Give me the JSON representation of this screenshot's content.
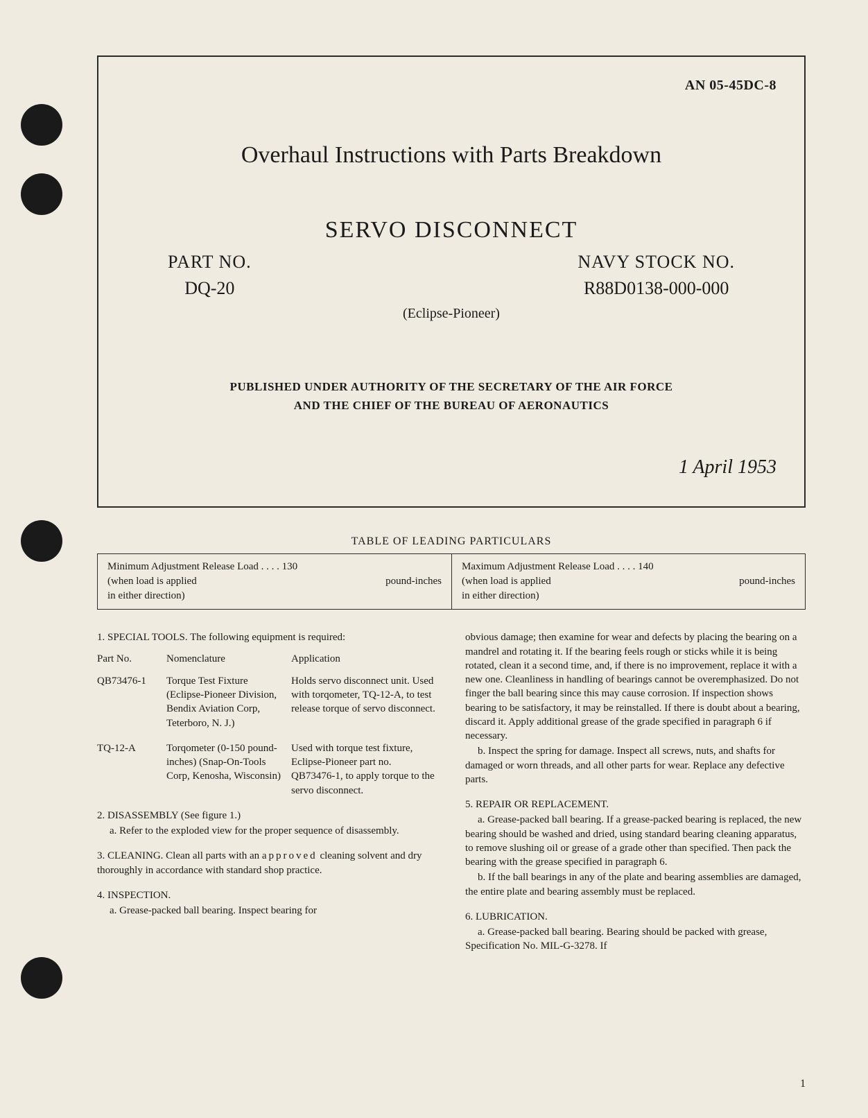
{
  "doc_number": "AN 05-45DC-8",
  "main_title": "Overhaul Instructions with Parts Breakdown",
  "servo_title": "SERVO DISCONNECT",
  "part_no_label": "PART NO.",
  "part_no_value": "DQ-20",
  "navy_label": "NAVY STOCK NO.",
  "navy_value": "R88D0138-000-000",
  "manufacturer": "(Eclipse-Pioneer)",
  "authority_line1": "PUBLISHED UNDER AUTHORITY OF THE SECRETARY OF THE AIR FORCE",
  "authority_line2": "AND THE CHIEF OF THE BUREAU OF AERONAUTICS",
  "date": "1 April 1953",
  "particulars_title": "TABLE OF LEADING PARTICULARS",
  "particulars": {
    "min_label": "Minimum Adjustment Release Load . . . . 130",
    "min_unit": "pound-inches",
    "min_note1": "(when load is applied",
    "min_note2": "in either direction)",
    "max_label": "Maximum Adjustment Release Load . . . . 140",
    "max_unit": "pound-inches",
    "max_note1": "(when load is applied",
    "max_note2": "in either direction)"
  },
  "sec1_title": "1. SPECIAL TOOLS.",
  "sec1_intro": "The following equipment is required:",
  "tools_headers": [
    "Part No.",
    "Nomenclature",
    "Application"
  ],
  "tools": [
    {
      "partno": "QB73476-1",
      "nomenclature": "Torque Test Fixture (Eclipse-Pioneer Division, Bendix Aviation Corp, Teterboro, N. J.)",
      "application": "Holds servo disconnect unit. Used with torqometer, TQ-12-A, to test release torque of servo disconnect."
    },
    {
      "partno": "TQ-12-A",
      "nomenclature": "Torqometer (0-150 pound-inches) (Snap-On-Tools Corp, Kenosha, Wisconsin)",
      "application": "Used with torque test fixture, Eclipse-Pioneer part no. QB73476-1, to apply torque to the servo disconnect."
    }
  ],
  "sec2_title": "2. DISASSEMBLY (See figure 1.)",
  "sec2_a": "a. Refer to the exploded view for the proper sequence of disassembly.",
  "sec3_title": "3. CLEANING.",
  "sec3_text": "Clean all parts with an",
  "sec3_approved": "approved",
  "sec3_text2": "cleaning solvent and dry thoroughly in accordance with standard shop practice.",
  "sec4_title": "4. INSPECTION.",
  "sec4_a_part1": "a. Grease-packed ball bearing. Inspect bearing for",
  "sec4_a_cont": "obvious damage; then examine for wear and defects by placing the bearing on a mandrel and rotating it. If the bearing feels rough or sticks while it is being rotated, clean it a second time, and, if there is no improvement, replace it with a new one. Cleanliness in handling of bearings cannot be overemphasized. Do not finger the ball bearing since this may cause corrosion. If inspection shows bearing to be satisfactory, it may be reinstalled. If there is doubt about a bearing, discard it. Apply additional grease of the grade specified in paragraph 6 if necessary.",
  "sec4_b": "b. Inspect the spring for damage. Inspect all screws, nuts, and shafts for damaged or worn threads, and all other parts for wear. Replace any defective parts.",
  "sec5_title": "5. REPAIR OR REPLACEMENT.",
  "sec5_a": "a. Grease-packed ball bearing. If a grease-packed bearing is replaced, the new bearing should be washed and dried, using standard bearing cleaning apparatus, to remove slushing oil or grease of a grade other than specified. Then pack the bearing with the grease specified in paragraph 6.",
  "sec5_b": "b. If the ball bearings in any of the plate and bearing assemblies are damaged, the entire plate and bearing assembly must be replaced.",
  "sec6_title": "6. LUBRICATION.",
  "sec6_a": "a. Grease-packed ball bearing. Bearing should be packed with grease, Specification No. MIL-G-3278. If",
  "page_num": "1"
}
